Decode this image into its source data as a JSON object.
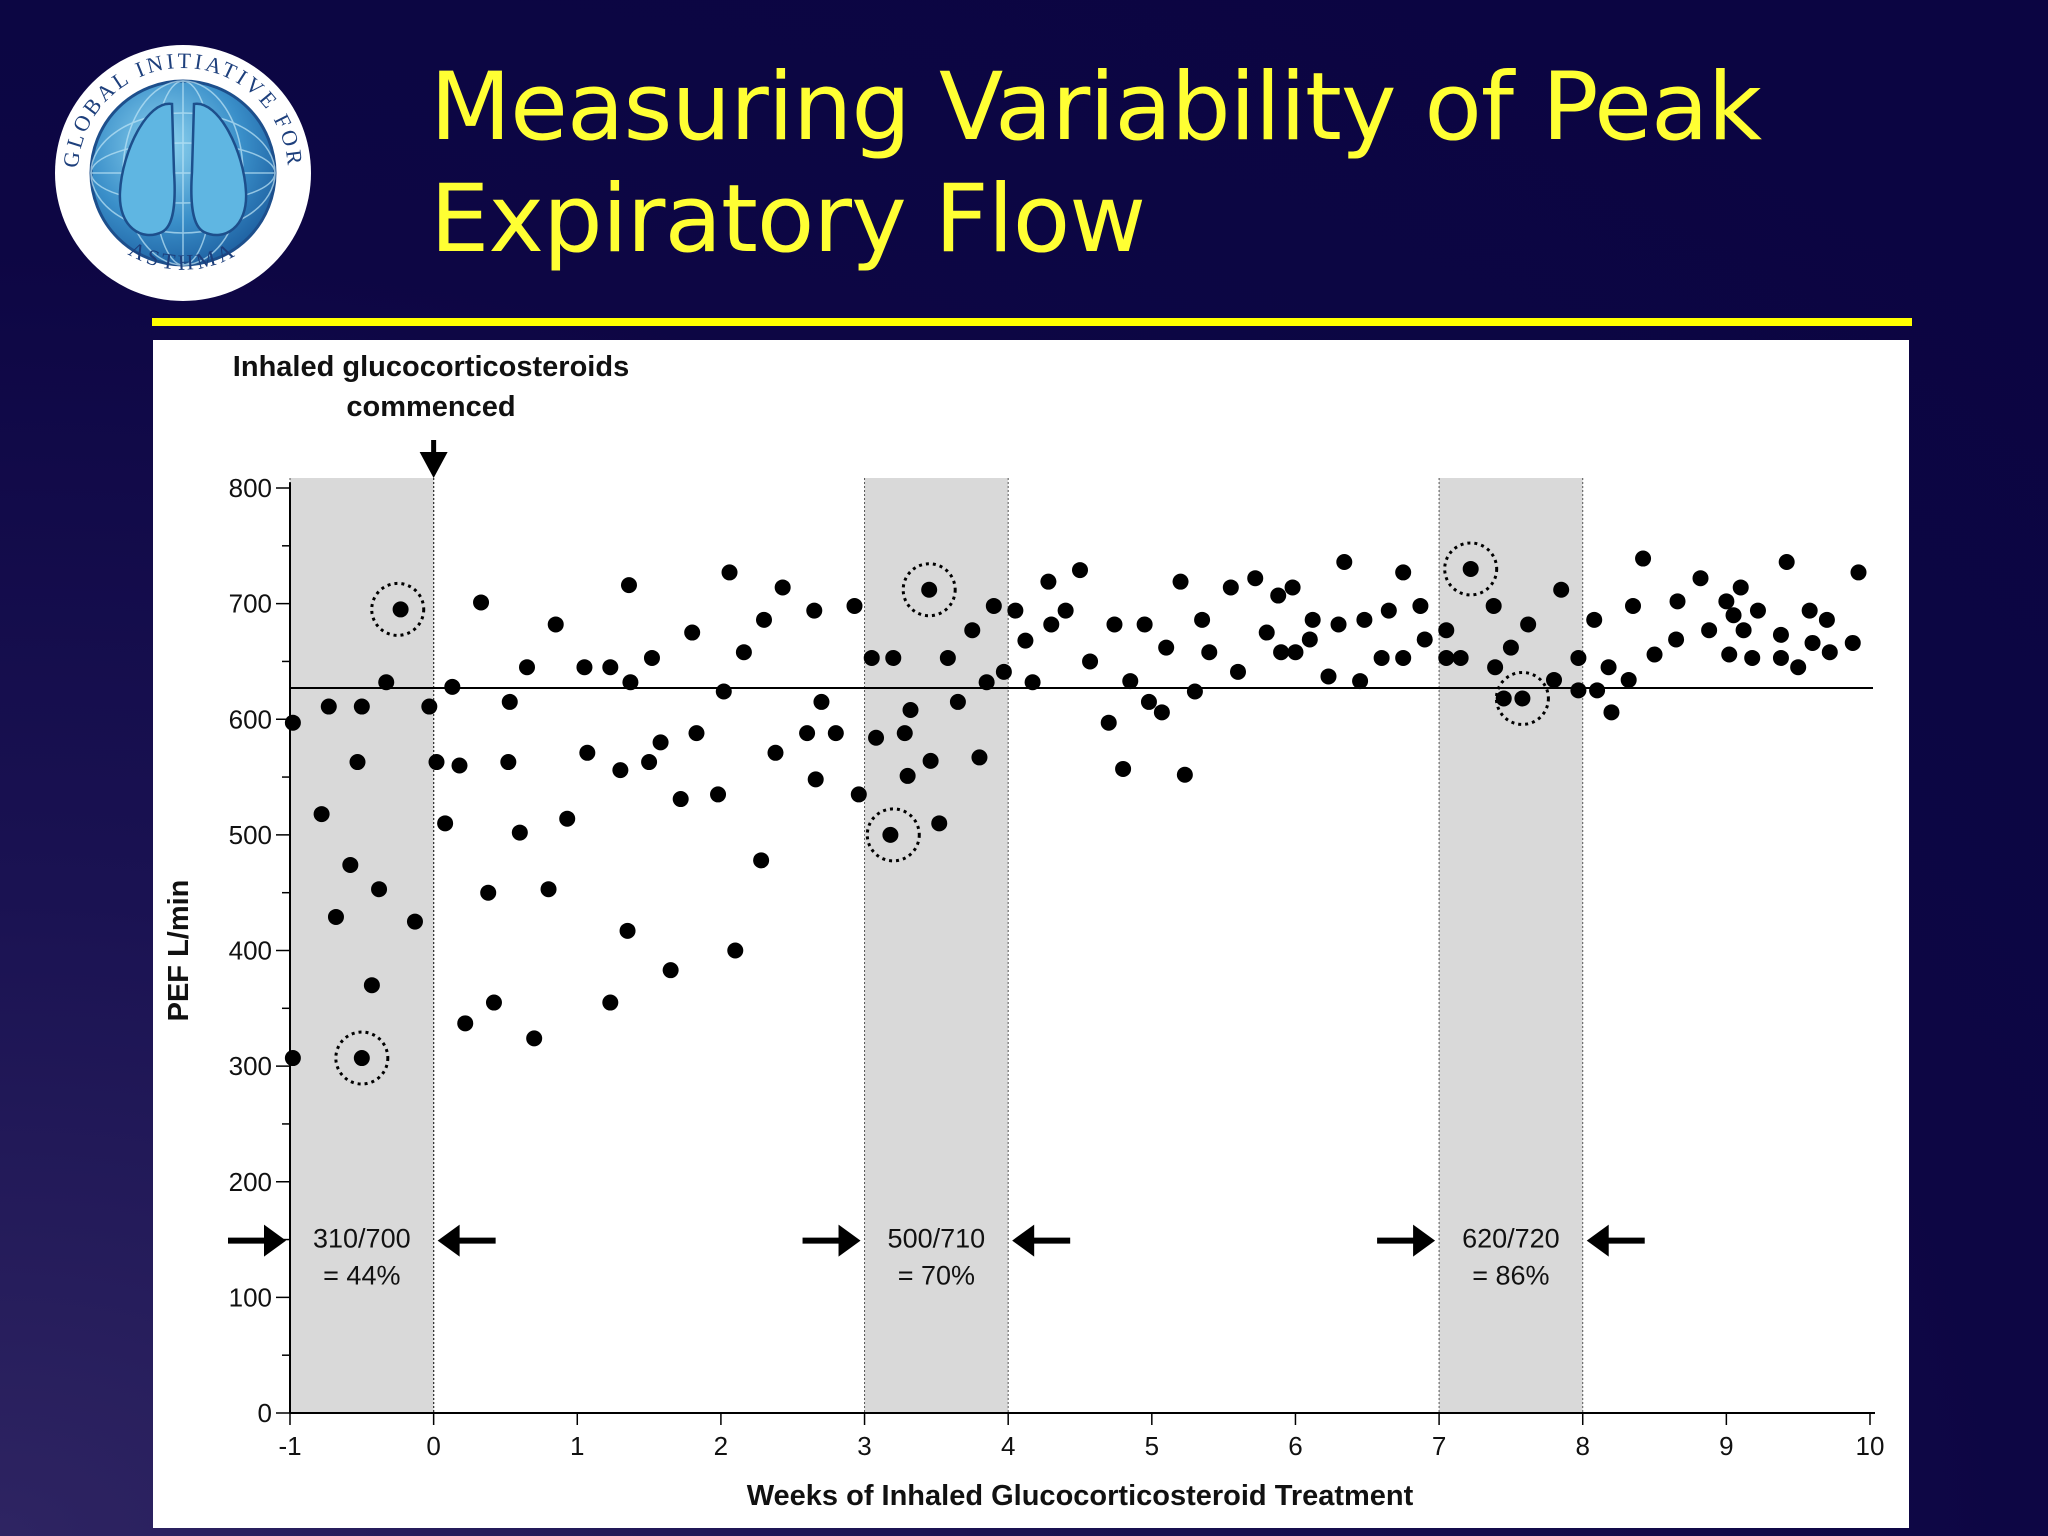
{
  "slide": {
    "title": "Measuring Variability of Peak Expiratory Flow",
    "colors": {
      "background": "#0d0644",
      "title": "#ffff33",
      "rule": "#ffff00",
      "shade": "#d9d9d9"
    },
    "logo": {
      "icon": "lungs-globe-logo",
      "text_top": "GLOBAL INITIATIVE FOR",
      "text_bottom": "ASTHMA"
    }
  },
  "chart_data": {
    "type": "scatter",
    "xlabel": "Weeks of Inhaled Glucocorticosteroid Treatment",
    "ylabel": "PEF L/min",
    "xlim": [
      -1,
      10
    ],
    "ylim": [
      0,
      800
    ],
    "xticks": [
      -1,
      0,
      1,
      2,
      3,
      4,
      5,
      6,
      7,
      8,
      9,
      10
    ],
    "yticks": [
      0,
      100,
      200,
      300,
      400,
      500,
      600,
      700,
      800
    ],
    "reference_line_y": 627,
    "annotation_top": "Inhaled glucocorticosteroids commenced",
    "annotation_top_x": 0,
    "shaded_bands": [
      {
        "x": [
          -1,
          0
        ],
        "ratio": "310/700",
        "percent": "= 44%"
      },
      {
        "x": [
          3,
          4
        ],
        "ratio": "500/710",
        "percent": "= 70%"
      },
      {
        "x": [
          7,
          8
        ],
        "ratio": "620/720",
        "percent": "= 86%"
      }
    ],
    "highlighted_points": [
      {
        "x": -0.25,
        "y": 695
      },
      {
        "x": -0.5,
        "y": 307
      },
      {
        "x": 3.45,
        "y": 712
      },
      {
        "x": 3.2,
        "y": 500
      },
      {
        "x": 7.22,
        "y": 730
      },
      {
        "x": 7.58,
        "y": 618
      }
    ],
    "points": [
      {
        "x": -0.98,
        "y": 597
      },
      {
        "x": -0.98,
        "y": 307
      },
      {
        "x": -0.78,
        "y": 518
      },
      {
        "x": -0.73,
        "y": 611
      },
      {
        "x": -0.68,
        "y": 429
      },
      {
        "x": -0.58,
        "y": 474
      },
      {
        "x": -0.53,
        "y": 563
      },
      {
        "x": -0.5,
        "y": 611
      },
      {
        "x": -0.5,
        "y": 307
      },
      {
        "x": -0.43,
        "y": 370
      },
      {
        "x": -0.38,
        "y": 453
      },
      {
        "x": -0.33,
        "y": 632
      },
      {
        "x": -0.23,
        "y": 695
      },
      {
        "x": -0.13,
        "y": 425
      },
      {
        "x": -0.03,
        "y": 611
      },
      {
        "x": 0.02,
        "y": 563
      },
      {
        "x": 0.08,
        "y": 510
      },
      {
        "x": 0.13,
        "y": 628
      },
      {
        "x": 0.18,
        "y": 560
      },
      {
        "x": 0.22,
        "y": 337
      },
      {
        "x": 0.33,
        "y": 701
      },
      {
        "x": 0.38,
        "y": 450
      },
      {
        "x": 0.42,
        "y": 355
      },
      {
        "x": 0.52,
        "y": 563
      },
      {
        "x": 0.53,
        "y": 615
      },
      {
        "x": 0.6,
        "y": 502
      },
      {
        "x": 0.65,
        "y": 645
      },
      {
        "x": 0.7,
        "y": 324
      },
      {
        "x": 0.8,
        "y": 453
      },
      {
        "x": 0.85,
        "y": 682
      },
      {
        "x": 0.93,
        "y": 514
      },
      {
        "x": 1.05,
        "y": 645
      },
      {
        "x": 1.07,
        "y": 571
      },
      {
        "x": 1.23,
        "y": 645
      },
      {
        "x": 1.23,
        "y": 355
      },
      {
        "x": 1.3,
        "y": 556
      },
      {
        "x": 1.35,
        "y": 417
      },
      {
        "x": 1.36,
        "y": 716
      },
      {
        "x": 1.37,
        "y": 632
      },
      {
        "x": 1.5,
        "y": 563
      },
      {
        "x": 1.52,
        "y": 653
      },
      {
        "x": 1.58,
        "y": 580
      },
      {
        "x": 1.65,
        "y": 383
      },
      {
        "x": 1.72,
        "y": 531
      },
      {
        "x": 1.8,
        "y": 675
      },
      {
        "x": 1.83,
        "y": 588
      },
      {
        "x": 1.98,
        "y": 535
      },
      {
        "x": 2.02,
        "y": 624
      },
      {
        "x": 2.06,
        "y": 727
      },
      {
        "x": 2.1,
        "y": 400
      },
      {
        "x": 2.16,
        "y": 658
      },
      {
        "x": 2.28,
        "y": 478
      },
      {
        "x": 2.3,
        "y": 686
      },
      {
        "x": 2.38,
        "y": 571
      },
      {
        "x": 2.43,
        "y": 714
      },
      {
        "x": 2.6,
        "y": 588
      },
      {
        "x": 2.65,
        "y": 694
      },
      {
        "x": 2.66,
        "y": 548
      },
      {
        "x": 2.7,
        "y": 615
      },
      {
        "x": 2.8,
        "y": 588
      },
      {
        "x": 2.93,
        "y": 698
      },
      {
        "x": 2.96,
        "y": 535
      },
      {
        "x": 3.05,
        "y": 653
      },
      {
        "x": 3.08,
        "y": 584
      },
      {
        "x": 3.18,
        "y": 500
      },
      {
        "x": 3.2,
        "y": 653
      },
      {
        "x": 3.28,
        "y": 588
      },
      {
        "x": 3.3,
        "y": 551
      },
      {
        "x": 3.32,
        "y": 608
      },
      {
        "x": 3.45,
        "y": 712
      },
      {
        "x": 3.46,
        "y": 564
      },
      {
        "x": 3.52,
        "y": 510
      },
      {
        "x": 3.58,
        "y": 653
      },
      {
        "x": 3.65,
        "y": 615
      },
      {
        "x": 3.75,
        "y": 677
      },
      {
        "x": 3.8,
        "y": 567
      },
      {
        "x": 3.85,
        "y": 632
      },
      {
        "x": 3.9,
        "y": 698
      },
      {
        "x": 3.97,
        "y": 641
      },
      {
        "x": 4.05,
        "y": 694
      },
      {
        "x": 4.12,
        "y": 668
      },
      {
        "x": 4.17,
        "y": 632
      },
      {
        "x": 4.28,
        "y": 719
      },
      {
        "x": 4.3,
        "y": 682
      },
      {
        "x": 4.4,
        "y": 694
      },
      {
        "x": 4.5,
        "y": 729
      },
      {
        "x": 4.57,
        "y": 650
      },
      {
        "x": 4.7,
        "y": 597
      },
      {
        "x": 4.74,
        "y": 682
      },
      {
        "x": 4.8,
        "y": 557
      },
      {
        "x": 4.85,
        "y": 633
      },
      {
        "x": 4.95,
        "y": 682
      },
      {
        "x": 4.98,
        "y": 615
      },
      {
        "x": 5.07,
        "y": 606
      },
      {
        "x": 5.1,
        "y": 662
      },
      {
        "x": 5.2,
        "y": 719
      },
      {
        "x": 5.23,
        "y": 552
      },
      {
        "x": 5.3,
        "y": 624
      },
      {
        "x": 5.35,
        "y": 686
      },
      {
        "x": 5.4,
        "y": 658
      },
      {
        "x": 5.55,
        "y": 714
      },
      {
        "x": 5.6,
        "y": 641
      },
      {
        "x": 5.72,
        "y": 722
      },
      {
        "x": 5.8,
        "y": 675
      },
      {
        "x": 5.88,
        "y": 707
      },
      {
        "x": 5.9,
        "y": 658
      },
      {
        "x": 5.98,
        "y": 714
      },
      {
        "x": 6.0,
        "y": 658
      },
      {
        "x": 6.1,
        "y": 669
      },
      {
        "x": 6.12,
        "y": 686
      },
      {
        "x": 6.23,
        "y": 637
      },
      {
        "x": 6.3,
        "y": 682
      },
      {
        "x": 6.34,
        "y": 736
      },
      {
        "x": 6.45,
        "y": 633
      },
      {
        "x": 6.48,
        "y": 686
      },
      {
        "x": 6.6,
        "y": 653
      },
      {
        "x": 6.65,
        "y": 694
      },
      {
        "x": 6.75,
        "y": 727
      },
      {
        "x": 6.75,
        "y": 653
      },
      {
        "x": 6.87,
        "y": 698
      },
      {
        "x": 6.9,
        "y": 669
      },
      {
        "x": 7.05,
        "y": 677
      },
      {
        "x": 7.05,
        "y": 653
      },
      {
        "x": 7.15,
        "y": 653
      },
      {
        "x": 7.22,
        "y": 730
      },
      {
        "x": 7.38,
        "y": 698
      },
      {
        "x": 7.39,
        "y": 645
      },
      {
        "x": 7.45,
        "y": 618
      },
      {
        "x": 7.5,
        "y": 662
      },
      {
        "x": 7.58,
        "y": 618
      },
      {
        "x": 7.62,
        "y": 682
      },
      {
        "x": 7.8,
        "y": 634
      },
      {
        "x": 7.85,
        "y": 712
      },
      {
        "x": 7.97,
        "y": 625
      },
      {
        "x": 7.97,
        "y": 653
      },
      {
        "x": 8.08,
        "y": 686
      },
      {
        "x": 8.1,
        "y": 625
      },
      {
        "x": 8.18,
        "y": 645
      },
      {
        "x": 8.2,
        "y": 606
      },
      {
        "x": 8.32,
        "y": 634
      },
      {
        "x": 8.35,
        "y": 698
      },
      {
        "x": 8.42,
        "y": 739
      },
      {
        "x": 8.5,
        "y": 656
      },
      {
        "x": 8.65,
        "y": 669
      },
      {
        "x": 8.66,
        "y": 702
      },
      {
        "x": 8.82,
        "y": 722
      },
      {
        "x": 8.88,
        "y": 677
      },
      {
        "x": 9.0,
        "y": 702
      },
      {
        "x": 9.02,
        "y": 656
      },
      {
        "x": 9.05,
        "y": 690
      },
      {
        "x": 9.1,
        "y": 714
      },
      {
        "x": 9.12,
        "y": 677
      },
      {
        "x": 9.18,
        "y": 653
      },
      {
        "x": 9.22,
        "y": 694
      },
      {
        "x": 9.38,
        "y": 673
      },
      {
        "x": 9.38,
        "y": 653
      },
      {
        "x": 9.42,
        "y": 736
      },
      {
        "x": 9.5,
        "y": 645
      },
      {
        "x": 9.58,
        "y": 694
      },
      {
        "x": 9.6,
        "y": 666
      },
      {
        "x": 9.7,
        "y": 686
      },
      {
        "x": 9.72,
        "y": 658
      },
      {
        "x": 9.88,
        "y": 666
      },
      {
        "x": 9.92,
        "y": 727
      }
    ]
  }
}
